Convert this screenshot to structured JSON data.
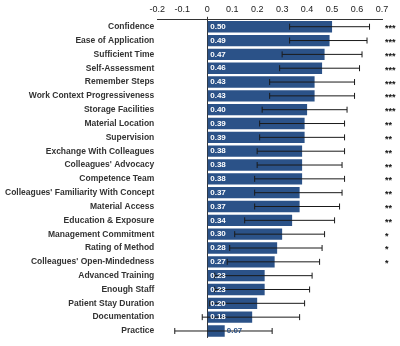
{
  "chart_data": {
    "type": "bar",
    "orientation": "horizontal",
    "categories": [
      "Confidence",
      "Ease of Application",
      "Sufficient Time",
      "Self-Assessment",
      "Remember Steps",
      "Work Context Progressiveness",
      "Storage Facilities",
      "Material Location",
      "Supervision",
      "Exchange With Colleagues",
      "Colleagues' Advocacy",
      "Competence Team",
      "Colleagues' Familiarity With Concept",
      "Material Access",
      "Education & Exposure",
      "Management Commitment",
      "Rating of Method",
      "Colleagues' Open-Mindedness",
      "Advanced Training",
      "Enough Staff",
      "Patient Stay Duration",
      "Documentation",
      "Practice"
    ],
    "values": [
      0.5,
      0.49,
      0.47,
      0.46,
      0.43,
      0.43,
      0.4,
      0.39,
      0.39,
      0.38,
      0.38,
      0.38,
      0.37,
      0.37,
      0.34,
      0.3,
      0.28,
      0.27,
      0.23,
      0.23,
      0.2,
      0.18,
      0.07
    ],
    "value_labels": [
      "0.50",
      "0.49",
      "0.47",
      "0.46",
      "0.43",
      "0.43",
      "0.40",
      "0.39",
      "0.39",
      "0.38",
      "0.38",
      "0.38",
      "0.37",
      "0.37",
      "0.34",
      "0.30",
      "0.28",
      "0.27",
      "0.23",
      "0.23",
      "0.20",
      "0.18",
      "0.07"
    ],
    "ci_low": [
      0.33,
      0.33,
      0.3,
      0.29,
      0.25,
      0.25,
      0.22,
      0.21,
      0.21,
      0.2,
      0.2,
      0.19,
      0.19,
      0.19,
      0.15,
      0.11,
      0.09,
      0.08,
      0.03,
      0.03,
      0.01,
      -0.02,
      -0.13
    ],
    "ci_high": [
      0.65,
      0.64,
      0.62,
      0.61,
      0.59,
      0.59,
      0.56,
      0.55,
      0.55,
      0.55,
      0.54,
      0.55,
      0.54,
      0.53,
      0.51,
      0.47,
      0.46,
      0.45,
      0.42,
      0.41,
      0.39,
      0.37,
      0.26
    ],
    "significance": [
      "***",
      "***",
      "***",
      "***",
      "***",
      "***",
      "***",
      "**",
      "**",
      "**",
      "**",
      "**",
      "**",
      "**",
      "**",
      "*",
      "*",
      "*",
      null,
      null,
      null,
      null,
      null
    ],
    "color": "#2b5288",
    "xlim": [
      -0.2,
      0.7
    ],
    "xticks": [
      -0.2,
      -0.1,
      0,
      0.1,
      0.2,
      0.3,
      0.4,
      0.5,
      0.6,
      0.7
    ],
    "grid": false,
    "data_labels": true
  }
}
